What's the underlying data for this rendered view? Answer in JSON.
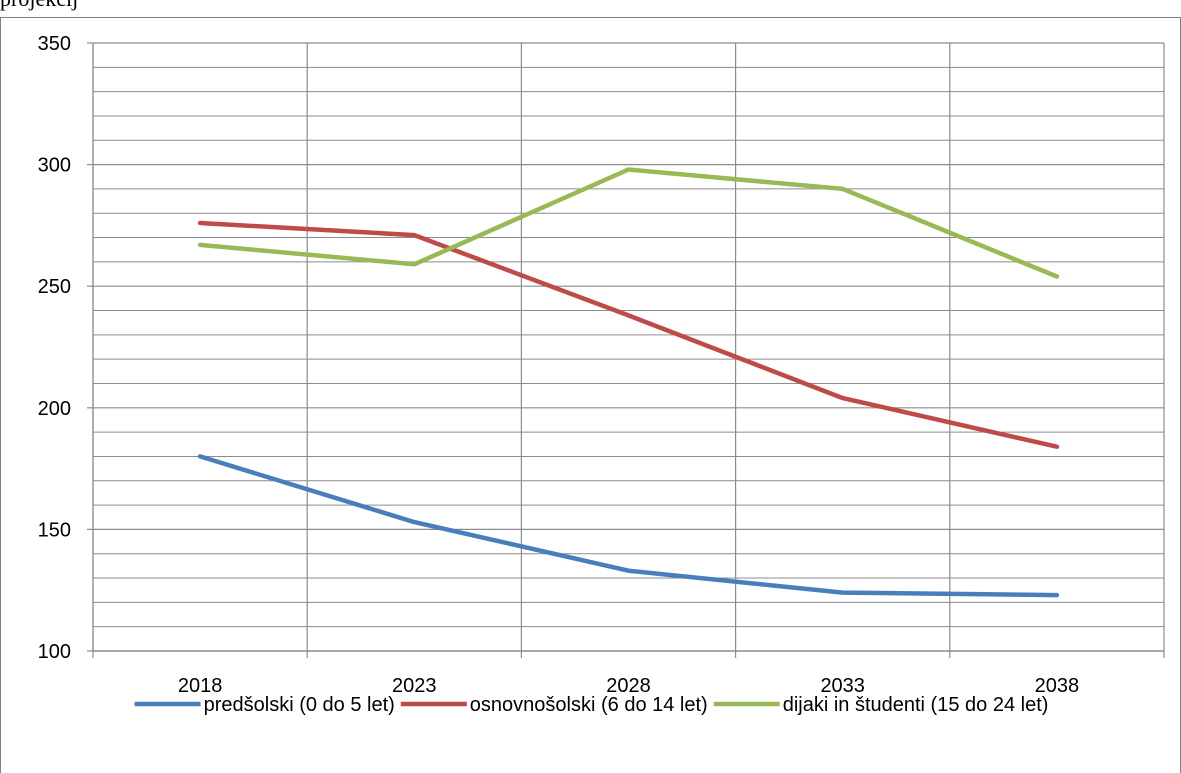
{
  "page": {
    "caption_fragment": "projekcij"
  },
  "chart_data": {
    "type": "line",
    "x": [
      2018,
      2023,
      2028,
      2033,
      2038
    ],
    "ylim": [
      100,
      350
    ],
    "y_major_ticks": [
      100,
      150,
      200,
      250,
      300,
      350
    ],
    "y_minor_step": 10,
    "grid": "on",
    "legend_position": "bottom",
    "title": "",
    "xlabel": "",
    "ylabel": "",
    "series": [
      {
        "name": "predšolski (0 do 5 let)",
        "color": "#4a7ebb",
        "values": [
          180,
          153,
          133,
          124,
          123
        ]
      },
      {
        "name": "osnovnošolski (6 do 14 let)",
        "color": "#be4b48",
        "values": [
          276,
          271,
          238,
          204,
          184
        ]
      },
      {
        "name": "dijaki in študenti (15 do 24 let)",
        "color": "#98b954",
        "values": [
          267,
          259,
          298,
          290,
          254
        ]
      }
    ]
  }
}
